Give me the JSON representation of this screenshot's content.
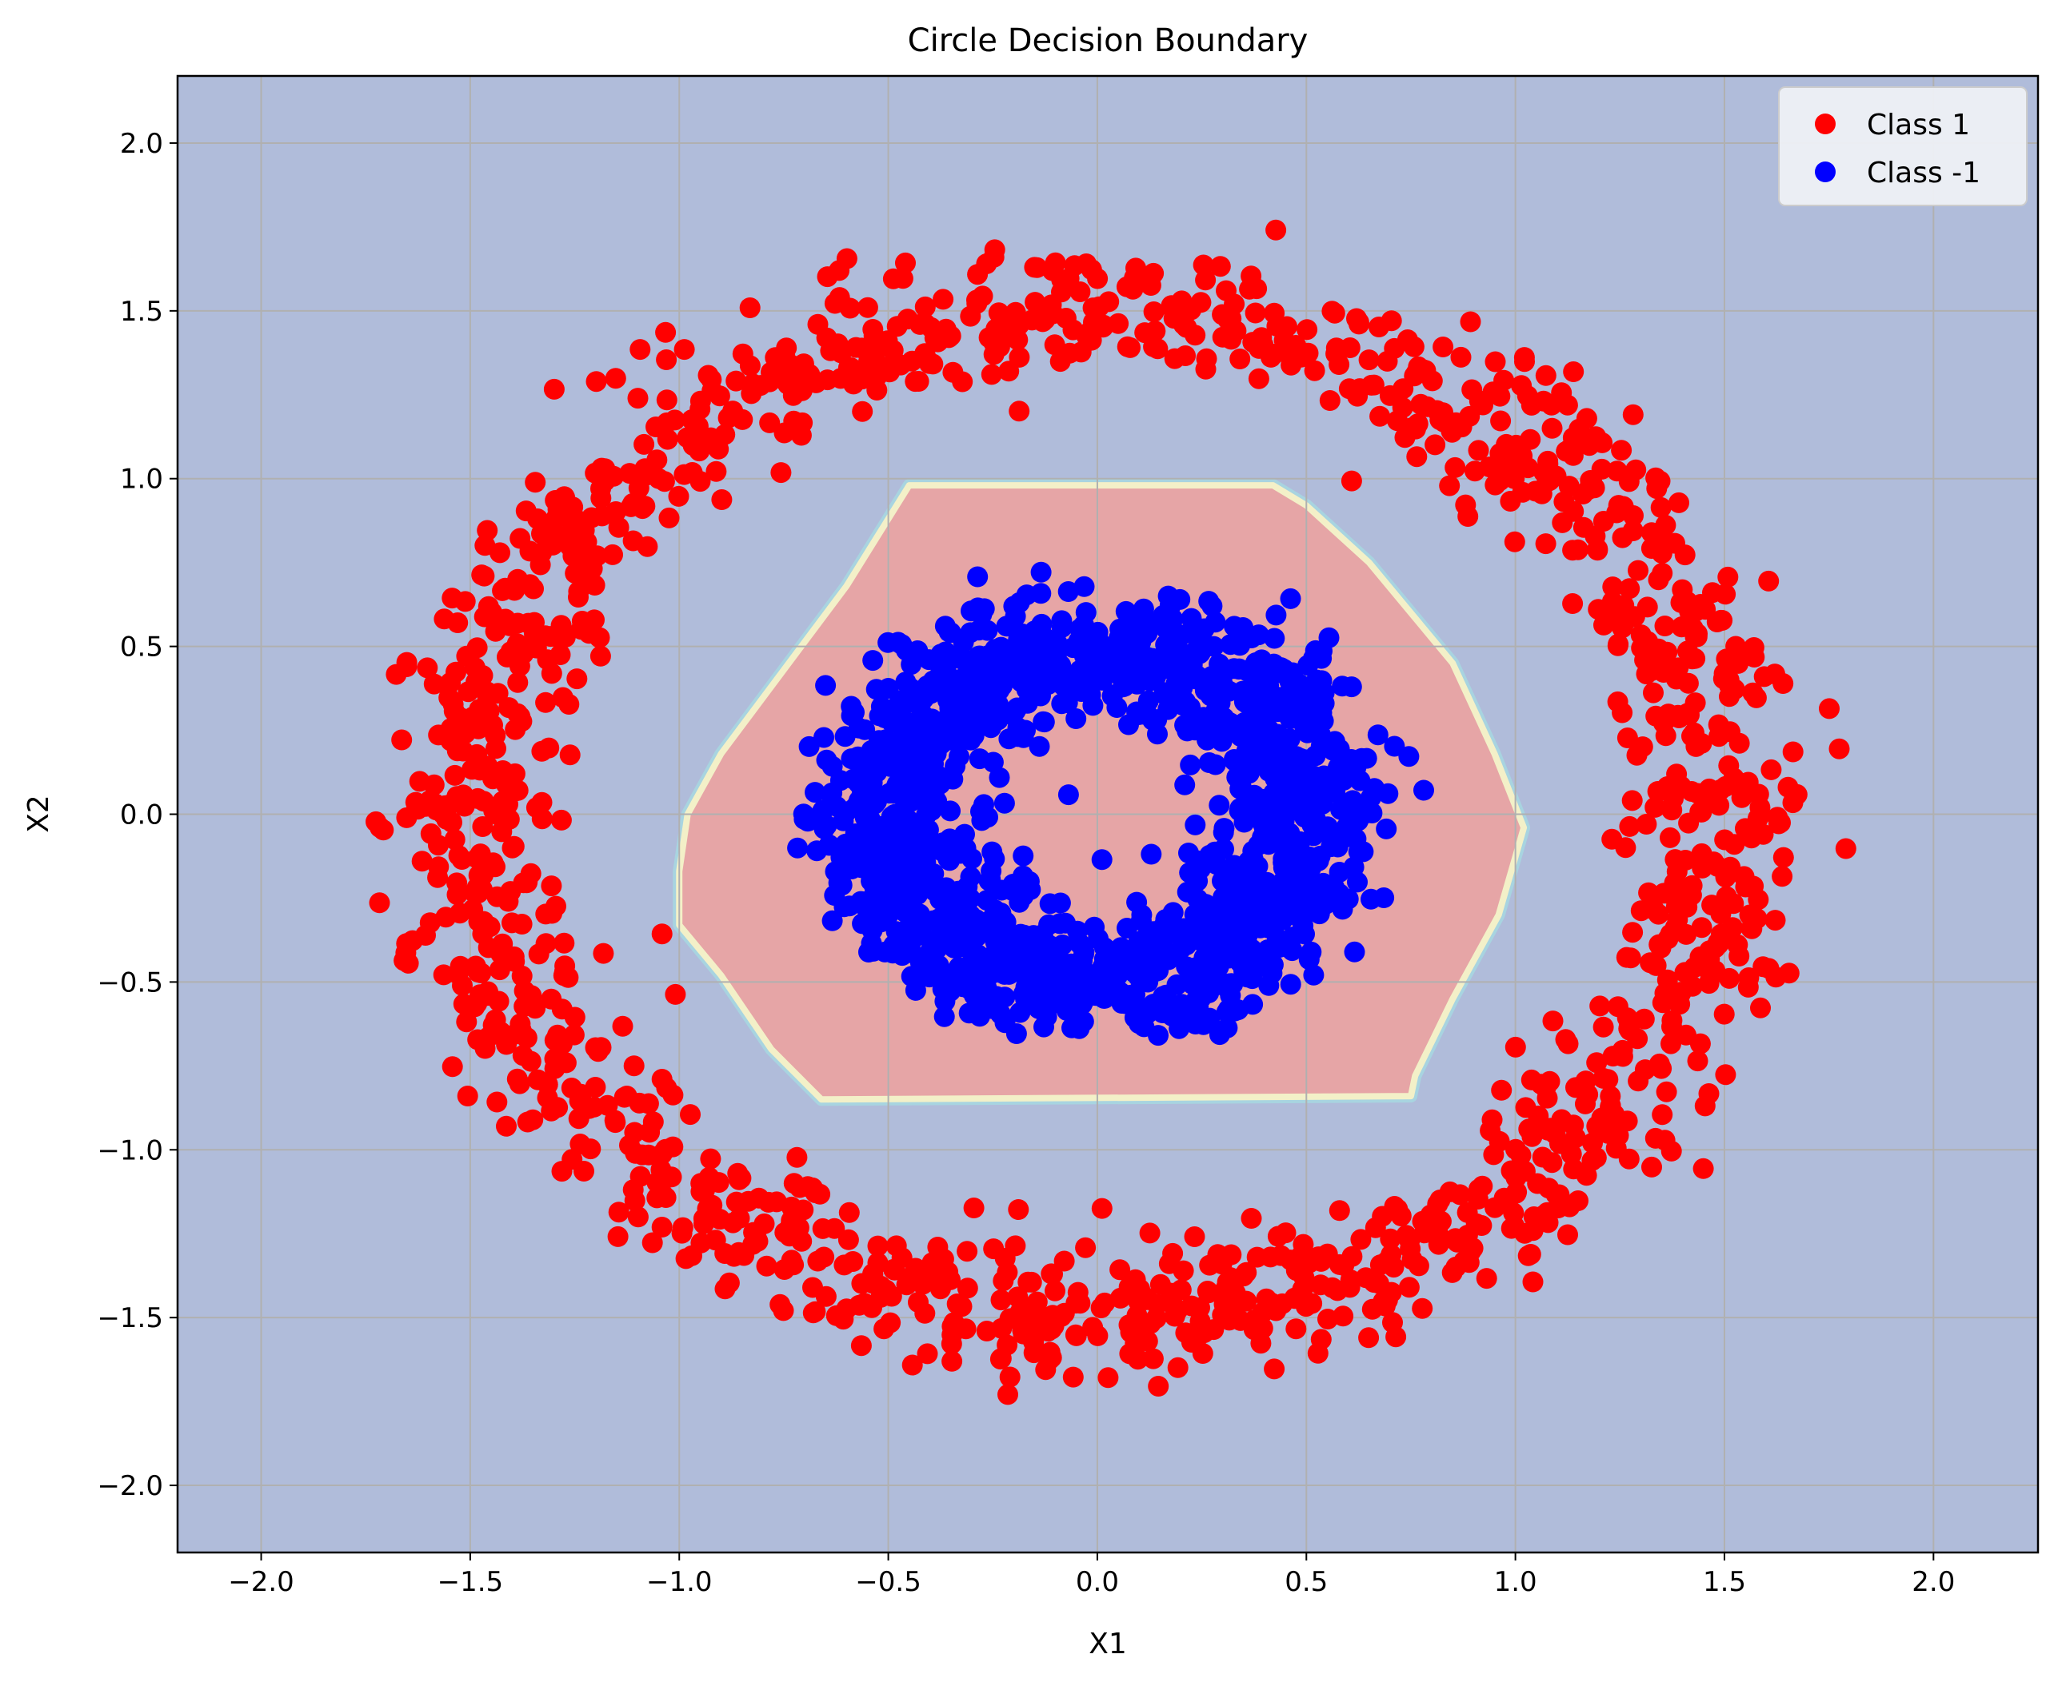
{
  "chart_data": {
    "type": "scatter",
    "title": "Circle Decision Boundary",
    "xlabel": "X1",
    "ylabel": "X2",
    "xlim": [
      -2.2,
      2.25
    ],
    "ylim": [
      -2.2,
      2.2
    ],
    "xticks": [
      {
        "value": -2.0,
        "label": "−2.0"
      },
      {
        "value": -1.5,
        "label": "−1.5"
      },
      {
        "value": -1.0,
        "label": "−1.0"
      },
      {
        "value": -0.5,
        "label": "−0.5"
      },
      {
        "value": 0.0,
        "label": "0.0"
      },
      {
        "value": 0.5,
        "label": "0.5"
      },
      {
        "value": 1.0,
        "label": "1.0"
      },
      {
        "value": 1.5,
        "label": "1.5"
      },
      {
        "value": 2.0,
        "label": "2.0"
      }
    ],
    "yticks": [
      {
        "value": -2.0,
        "label": "−2.0"
      },
      {
        "value": -1.5,
        "label": "−1.5"
      },
      {
        "value": -1.0,
        "label": "−1.0"
      },
      {
        "value": -0.5,
        "label": "−0.5"
      },
      {
        "value": 0.0,
        "label": "0.0"
      },
      {
        "value": 0.5,
        "label": "0.5"
      },
      {
        "value": 1.0,
        "label": "1.0"
      },
      {
        "value": 1.5,
        "label": "1.5"
      },
      {
        "value": 2.0,
        "label": "2.0"
      }
    ],
    "grid": true,
    "legend_position": "top-right",
    "colors": {
      "background_region": "#b0bcda",
      "positive_region": "#e6a5a6",
      "boundary_edge": "#f3f0c8",
      "class_1": "#ff0000",
      "class_neg1": "#0000ff",
      "grid": "#b0b0b0"
    },
    "decision_region": {
      "label": "Class -1 region",
      "polygon": [
        [
          -0.45,
          0.98
        ],
        [
          0.42,
          0.98
        ],
        [
          0.5,
          0.92
        ],
        [
          0.65,
          0.75
        ],
        [
          0.85,
          0.45
        ],
        [
          0.95,
          0.18
        ],
        [
          1.02,
          -0.04
        ],
        [
          0.96,
          -0.3
        ],
        [
          0.85,
          -0.55
        ],
        [
          0.76,
          -0.78
        ],
        [
          0.75,
          -0.84
        ],
        [
          -0.66,
          -0.85
        ],
        [
          -0.78,
          -0.7
        ],
        [
          -0.9,
          -0.48
        ],
        [
          -1.0,
          -0.33
        ],
        [
          -1.0,
          -0.17
        ],
        [
          -0.98,
          0.0
        ],
        [
          -0.9,
          0.18
        ],
        [
          -0.78,
          0.38
        ],
        [
          -0.6,
          0.68
        ]
      ]
    },
    "series": [
      {
        "name": "Class 1",
        "color": "#ff0000",
        "distribution": {
          "shape": "ring",
          "center": [
            0.0,
            0.0
          ],
          "radius": 1.5,
          "spread": 0.1,
          "count": 1500
        }
      },
      {
        "name": "Class -1",
        "color": "#0000ff",
        "distribution": {
          "shape": "ring",
          "center": [
            0.0,
            0.0
          ],
          "radius": 0.5,
          "spread": 0.1,
          "count": 1500
        }
      }
    ]
  }
}
